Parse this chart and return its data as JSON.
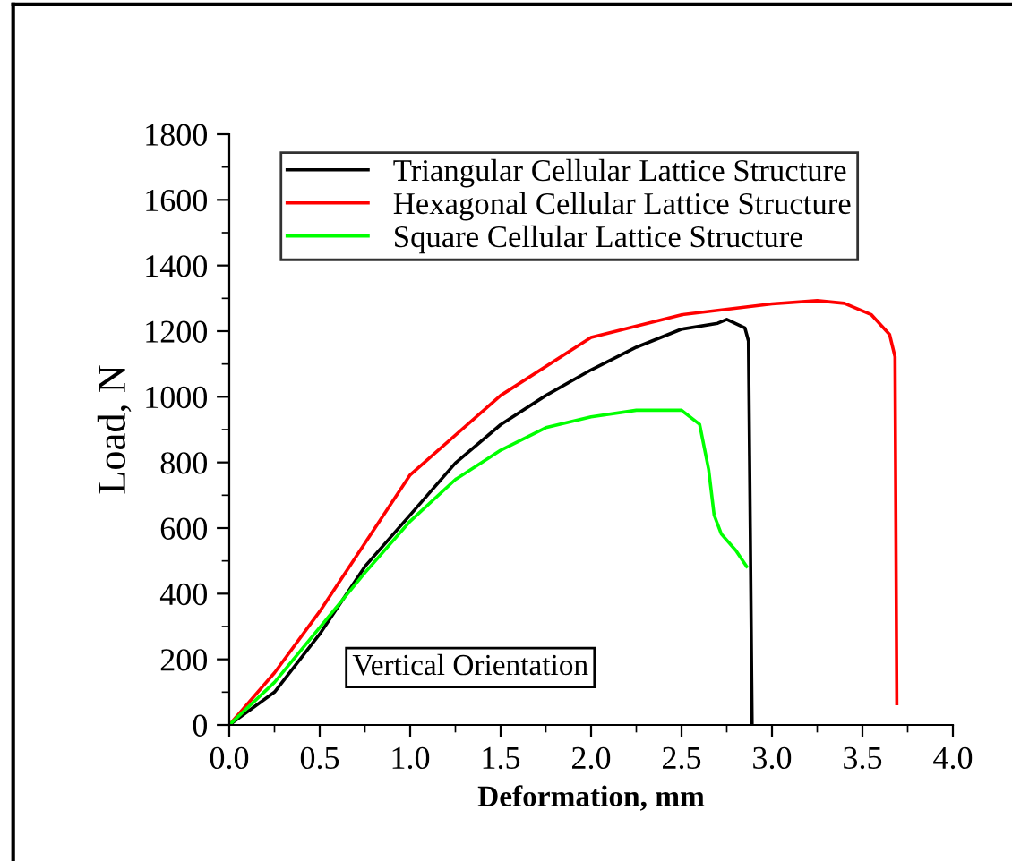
{
  "chart_data": {
    "type": "line",
    "xlabel": "Deformation, mm",
    "ylabel": "Load, N",
    "xlim": [
      0,
      4
    ],
    "ylim": [
      0,
      1800
    ],
    "xticks": [
      {
        "value": 0,
        "label": "0.0"
      },
      0.5,
      {
        "value": 1,
        "label": "1.0"
      },
      1.5,
      {
        "value": 2,
        "label": "2.0"
      },
      2.5,
      {
        "value": 3,
        "label": "3.0"
      },
      3.5,
      {
        "value": 4,
        "label": "4.0"
      }
    ],
    "yticks": [
      0,
      200,
      400,
      600,
      800,
      1000,
      1200,
      1400,
      1600,
      1800
    ],
    "legend": "top left",
    "grid": false,
    "line_style": "solid",
    "marker": "none",
    "annotations": [
      "Vertical Orientation"
    ],
    "series": [
      {
        "name": "Triangular Cellular Lattice Structure",
        "color": "#000000",
        "x": [
          0,
          0.25,
          0.5,
          0.75,
          1.0,
          1.25,
          1.5,
          1.75,
          2.0,
          2.25,
          2.5,
          2.7,
          2.75,
          2.85,
          2.87,
          2.88,
          2.89
        ],
        "values": [
          0,
          100,
          277,
          483,
          640,
          798,
          915,
          1004,
          1082,
          1151,
          1206,
          1224,
          1236,
          1210,
          1170,
          600,
          0
        ]
      },
      {
        "name": "Hexagonal Cellular Lattice Structure",
        "color": "#ff0000",
        "x": [
          0,
          0.25,
          0.5,
          1.0,
          1.5,
          2.0,
          2.5,
          3.0,
          3.25,
          3.4,
          3.55,
          3.65,
          3.68,
          3.69
        ],
        "values": [
          0,
          159,
          346,
          762,
          1004,
          1181,
          1250,
          1283,
          1293,
          1285,
          1250,
          1190,
          1122,
          65
        ]
      },
      {
        "name": "Square Cellular Lattice Structure",
        "color": "#00ff00",
        "x": [
          0,
          0.25,
          0.5,
          0.75,
          1.0,
          1.25,
          1.5,
          1.75,
          2.0,
          2.25,
          2.5,
          2.6,
          2.65,
          2.68,
          2.72,
          2.8,
          2.86
        ],
        "values": [
          0,
          130,
          297,
          464,
          621,
          748,
          837,
          906,
          939,
          959,
          959,
          916,
          778,
          640,
          582,
          532,
          483
        ]
      }
    ]
  }
}
